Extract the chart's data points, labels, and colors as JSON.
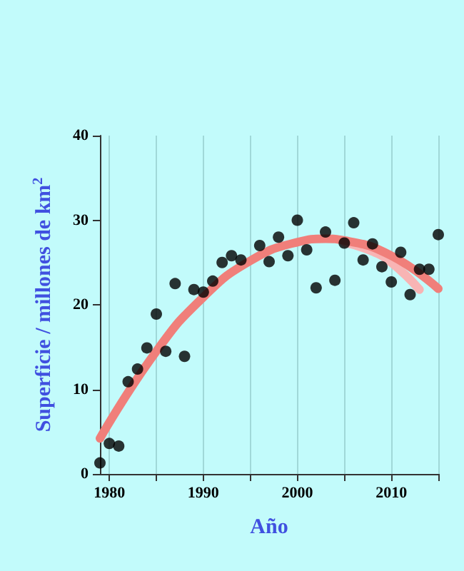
{
  "chart_data": {
    "type": "scatter",
    "xlabel": "Año",
    "ylabel": "Superficie / millones de km$^{2}$",
    "xlim": [
      1979,
      2015
    ],
    "ylim": [
      0,
      40
    ],
    "xticks": [
      1980,
      {
        "value": 1985,
        "label": null
      },
      1990,
      {
        "value": 1995,
        "label": null
      },
      2000,
      {
        "value": 2005,
        "label": null
      },
      2010,
      {
        "value": 2015,
        "label": null
      }
    ],
    "yticks": [
      0,
      10,
      20,
      30,
      40
    ],
    "grid": "x",
    "marker": "circle",
    "series": [
      {
        "type": "line",
        "marker": "none",
        "color": "#f8b4b4",
        "x": [
          2005,
          2008,
          2010,
          2013
        ],
        "values": [
          27.4,
          26.3,
          25.0,
          21.8
        ]
      },
      {
        "type": "line",
        "marker": "none",
        "color": "#f07f7a",
        "x": [
          1979,
          1985,
          1990,
          1995,
          2000,
          2003,
          2005,
          2010,
          2015
        ],
        "values": [
          4.2,
          14.5,
          20.9,
          25.2,
          27.4,
          27.8,
          27.6,
          25.8,
          21.9
        ]
      },
      {
        "color": "#000000",
        "x": [
          1979,
          1980,
          1981,
          1982,
          1983,
          1984,
          1985,
          1986,
          1987,
          1988,
          1989,
          1990,
          1991,
          1992,
          1993,
          1994,
          1996,
          1997,
          1998,
          1999,
          2000,
          2001,
          2002,
          2003,
          2004,
          2005,
          2006,
          2007,
          2008,
          2009,
          2010,
          2011,
          2012,
          2013,
          2014,
          2015
        ],
        "values": [
          1.3,
          3.6,
          3.3,
          10.9,
          12.4,
          14.9,
          18.9,
          14.5,
          22.5,
          13.9,
          21.8,
          21.5,
          22.8,
          25.0,
          25.8,
          25.3,
          27.0,
          25.1,
          28.0,
          25.8,
          30.0,
          26.5,
          22.0,
          28.6,
          22.9,
          27.3,
          29.7,
          25.3,
          27.2,
          24.5,
          22.7,
          26.2,
          21.2,
          24.2,
          24.2,
          28.3
        ]
      }
    ]
  }
}
